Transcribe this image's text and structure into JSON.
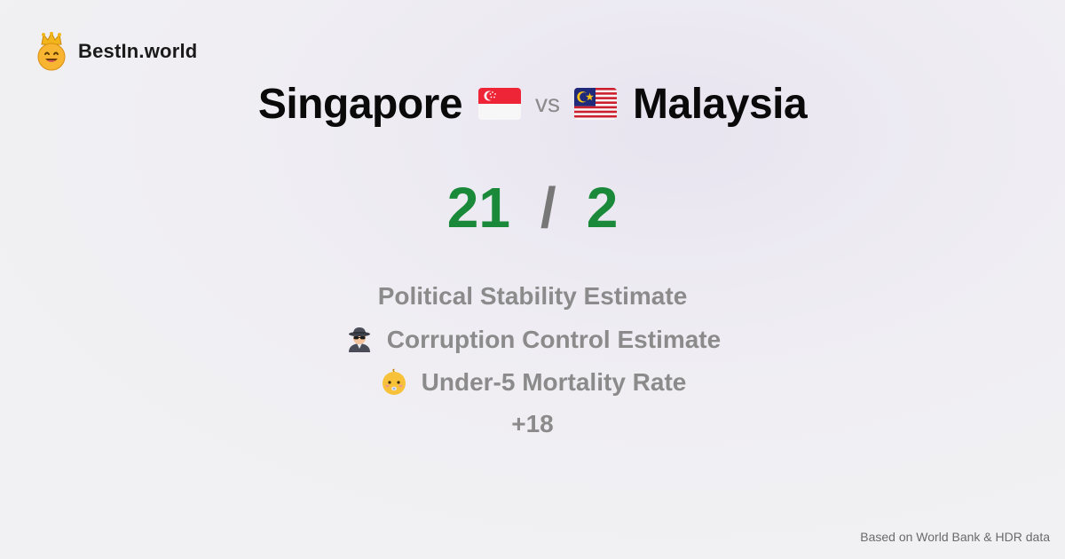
{
  "brand": {
    "name": "BestIn.world",
    "icon": "crown-smiley-icon"
  },
  "comparison": {
    "country_a": {
      "name": "Singapore",
      "flag": "singapore-flag-icon"
    },
    "vs_label": "vs",
    "country_b": {
      "name": "Malaysia",
      "flag": "malaysia-flag-icon"
    }
  },
  "score": {
    "a": "21",
    "separator": "/",
    "b": "2",
    "color": "#1a8a3a"
  },
  "metrics": [
    {
      "label": "Political Stability Estimate",
      "icon": ""
    },
    {
      "label": "Corruption Control Estimate",
      "icon": "spy-icon"
    },
    {
      "label": "Under-5 Mortality Rate",
      "icon": "baby-icon"
    }
  ],
  "more_count": "+18",
  "footer": {
    "source_note": "Based on World Bank & HDR data"
  }
}
